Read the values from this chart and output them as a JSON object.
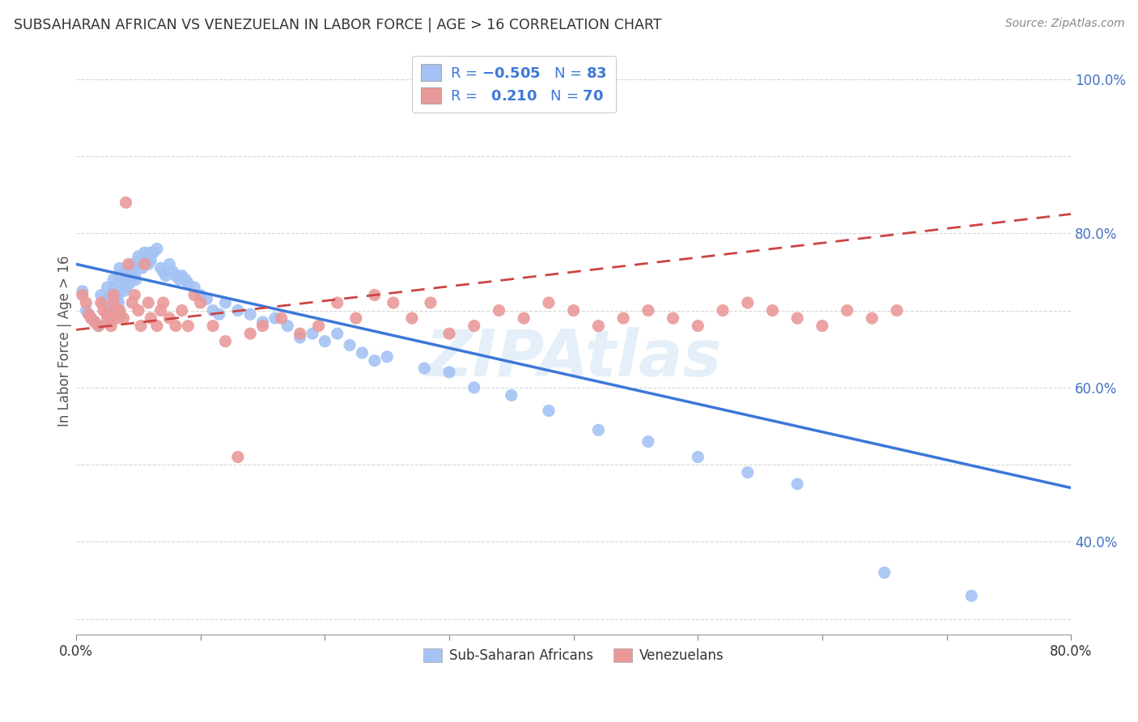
{
  "title": "SUBSAHARAN AFRICAN VS VENEZUELAN IN LABOR FORCE | AGE > 16 CORRELATION CHART",
  "source": "Source: ZipAtlas.com",
  "ylabel": "In Labor Force | Age > 16",
  "watermark": "ZIPAtlas",
  "blue_color": "#a4c2f4",
  "pink_color": "#ea9999",
  "blue_line_color": "#3c78d8",
  "pink_line_color": "#cc4444",
  "legend_n_blue": "83",
  "legend_r_pink": "0.210",
  "legend_n_pink": "70",
  "legend_label_blue": "Sub-Saharan Africans",
  "legend_label_pink": "Venezuelans",
  "blue_scatter_x": [
    0.005,
    0.008,
    0.01,
    0.012,
    0.015,
    0.018,
    0.02,
    0.022,
    0.025,
    0.025,
    0.027,
    0.028,
    0.03,
    0.03,
    0.032,
    0.033,
    0.034,
    0.035,
    0.035,
    0.036,
    0.038,
    0.04,
    0.04,
    0.04,
    0.042,
    0.043,
    0.045,
    0.045,
    0.047,
    0.048,
    0.05,
    0.05,
    0.052,
    0.053,
    0.055,
    0.055,
    0.057,
    0.058,
    0.06,
    0.06,
    0.062,
    0.065,
    0.068,
    0.07,
    0.072,
    0.075,
    0.078,
    0.08,
    0.083,
    0.085,
    0.088,
    0.09,
    0.095,
    0.1,
    0.105,
    0.11,
    0.115,
    0.12,
    0.13,
    0.14,
    0.15,
    0.16,
    0.17,
    0.18,
    0.19,
    0.2,
    0.21,
    0.22,
    0.23,
    0.24,
    0.25,
    0.28,
    0.3,
    0.32,
    0.35,
    0.38,
    0.42,
    0.46,
    0.5,
    0.54,
    0.58,
    0.65,
    0.72
  ],
  "blue_scatter_y": [
    0.725,
    0.7,
    0.695,
    0.69,
    0.685,
    0.68,
    0.72,
    0.71,
    0.73,
    0.715,
    0.7,
    0.695,
    0.74,
    0.73,
    0.72,
    0.715,
    0.71,
    0.755,
    0.745,
    0.735,
    0.725,
    0.75,
    0.74,
    0.73,
    0.745,
    0.735,
    0.76,
    0.75,
    0.745,
    0.74,
    0.77,
    0.76,
    0.765,
    0.755,
    0.775,
    0.765,
    0.77,
    0.76,
    0.775,
    0.765,
    0.775,
    0.78,
    0.755,
    0.75,
    0.745,
    0.76,
    0.75,
    0.745,
    0.74,
    0.745,
    0.74,
    0.735,
    0.73,
    0.72,
    0.715,
    0.7,
    0.695,
    0.71,
    0.7,
    0.695,
    0.685,
    0.69,
    0.68,
    0.665,
    0.67,
    0.66,
    0.67,
    0.655,
    0.645,
    0.635,
    0.64,
    0.625,
    0.62,
    0.6,
    0.59,
    0.57,
    0.545,
    0.53,
    0.51,
    0.49,
    0.475,
    0.36,
    0.33
  ],
  "pink_scatter_x": [
    0.005,
    0.008,
    0.01,
    0.012,
    0.015,
    0.018,
    0.02,
    0.022,
    0.025,
    0.025,
    0.027,
    0.028,
    0.03,
    0.03,
    0.032,
    0.033,
    0.035,
    0.035,
    0.038,
    0.04,
    0.042,
    0.045,
    0.047,
    0.05,
    0.052,
    0.055,
    0.058,
    0.06,
    0.065,
    0.068,
    0.07,
    0.075,
    0.08,
    0.085,
    0.09,
    0.095,
    0.1,
    0.11,
    0.12,
    0.13,
    0.14,
    0.15,
    0.165,
    0.18,
    0.195,
    0.21,
    0.225,
    0.24,
    0.255,
    0.27,
    0.285,
    0.3,
    0.32,
    0.34,
    0.36,
    0.38,
    0.4,
    0.42,
    0.44,
    0.46,
    0.48,
    0.5,
    0.52,
    0.54,
    0.56,
    0.58,
    0.6,
    0.62,
    0.64,
    0.66
  ],
  "pink_scatter_y": [
    0.72,
    0.71,
    0.695,
    0.69,
    0.685,
    0.68,
    0.71,
    0.7,
    0.695,
    0.69,
    0.685,
    0.68,
    0.72,
    0.71,
    0.7,
    0.69,
    0.7,
    0.695,
    0.69,
    0.84,
    0.76,
    0.71,
    0.72,
    0.7,
    0.68,
    0.76,
    0.71,
    0.69,
    0.68,
    0.7,
    0.71,
    0.69,
    0.68,
    0.7,
    0.68,
    0.72,
    0.71,
    0.68,
    0.66,
    0.51,
    0.67,
    0.68,
    0.69,
    0.67,
    0.68,
    0.71,
    0.69,
    0.72,
    0.71,
    0.69,
    0.71,
    0.67,
    0.68,
    0.7,
    0.69,
    0.71,
    0.7,
    0.68,
    0.69,
    0.7,
    0.69,
    0.68,
    0.7,
    0.71,
    0.7,
    0.69,
    0.68,
    0.7,
    0.69,
    0.7
  ],
  "xmin": 0.0,
  "xmax": 0.8,
  "ymin": 0.28,
  "ymax": 1.04,
  "blue_line_x": [
    0.0,
    0.8
  ],
  "blue_line_y": [
    0.76,
    0.47
  ],
  "pink_line_x": [
    0.0,
    0.8
  ],
  "pink_line_y": [
    0.675,
    0.825
  ]
}
